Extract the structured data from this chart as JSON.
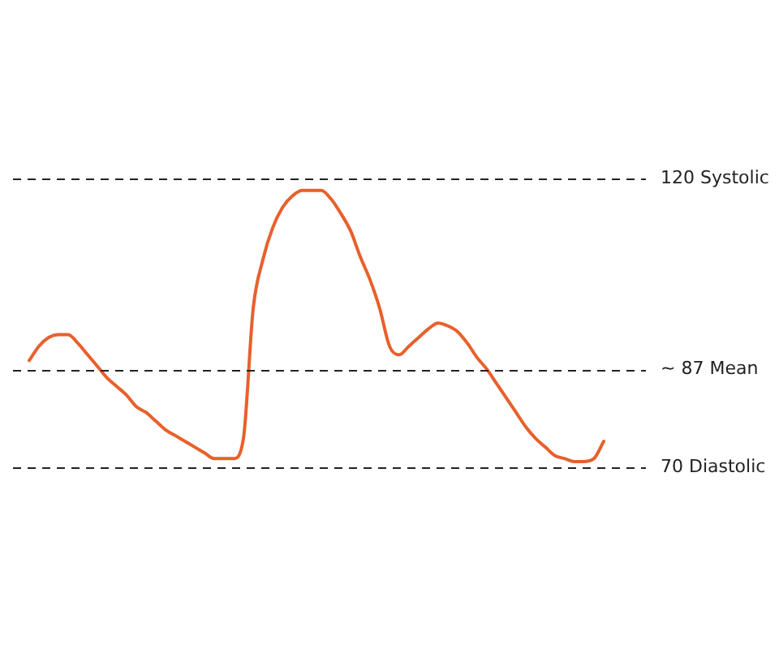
{
  "chart_data": {
    "type": "line",
    "categories": [
      null,
      null,
      null,
      null,
      null,
      null,
      null,
      null,
      null,
      null,
      null,
      null,
      null,
      null,
      null,
      null,
      null,
      null,
      null,
      null,
      null,
      null,
      null,
      null,
      null,
      null,
      null,
      null,
      null,
      null,
      null,
      null,
      null,
      null,
      null,
      null,
      null,
      null,
      null,
      null,
      null,
      null,
      null,
      null,
      null,
      null,
      null,
      null,
      null,
      null,
      null,
      null,
      null,
      null,
      null,
      null,
      null,
      null,
      null,
      null
    ],
    "series": [
      {
        "color": "#e8602c",
        "values": [
          88.5,
          91,
          92.5,
          93,
          93,
          91.5,
          89.5,
          87.5,
          85.5,
          84,
          82.5,
          80.5,
          79.5,
          78,
          76.5,
          75.5,
          74.5,
          73.5,
          72.5,
          71.5,
          71.5,
          71.5,
          75,
          97.5,
          106,
          111.5,
          115,
          117,
          118,
          118,
          118,
          116.5,
          114,
          111,
          106.5,
          102.5,
          97.5,
          91,
          89.5,
          91,
          92.5,
          94,
          95,
          94.5,
          93.5,
          91.5,
          89,
          87,
          84.5,
          82,
          79.5,
          77,
          75,
          73.5,
          72,
          71.5,
          71,
          71,
          71.5,
          74.5
        ]
      }
    ],
    "ylim": [
      38.5,
      151
    ],
    "tick_labels": false,
    "grid": false,
    "legend": false,
    "marker": "none",
    "line_style": "solid",
    "ref_lines": [
      {
        "axis": "y",
        "value": 120,
        "label": "120 Systolic",
        "line_style": "dashed"
      },
      {
        "axis": "y",
        "value": 87,
        "label": "~ 87 Mean",
        "line_style": "dashed"
      },
      {
        "axis": "y",
        "value": 70,
        "label": "70 Diastolic",
        "line_style": "dashed"
      }
    ]
  }
}
